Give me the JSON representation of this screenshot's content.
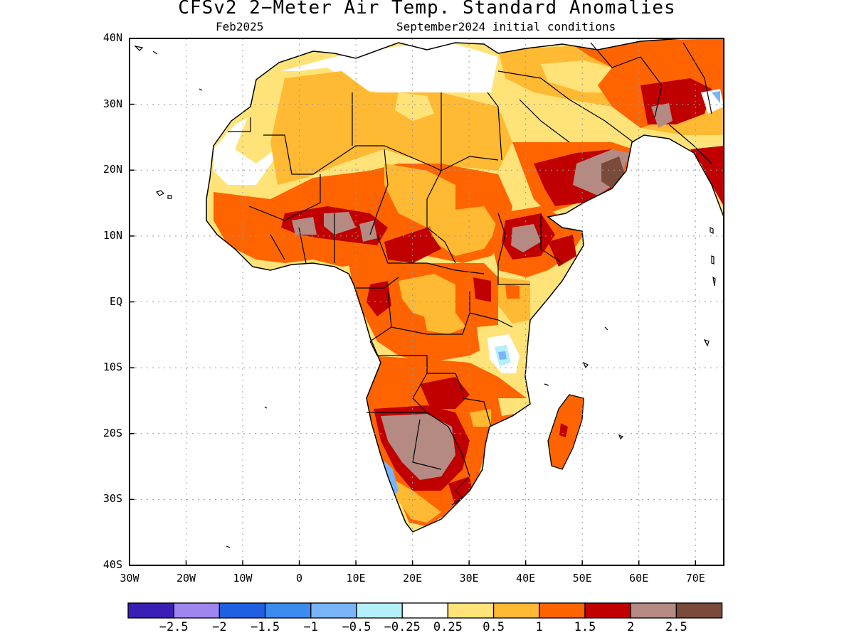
{
  "header": {
    "title": "CFSv2 2−Meter Air Temp. Standard Anomalies",
    "period": "Feb2025",
    "init": "September2024 initial conditions"
  },
  "map": {
    "region": "Africa",
    "lat_range": [
      "40S",
      "40N"
    ],
    "lon_range": [
      "30W",
      "75E"
    ],
    "lat_ticks": [
      "40N",
      "30N",
      "20N",
      "10N",
      "EQ",
      "10S",
      "20S",
      "30S",
      "40S"
    ],
    "lon_ticks": [
      "30W",
      "20W",
      "10W",
      "0",
      "10E",
      "20E",
      "30E",
      "40E",
      "50E",
      "60E",
      "70E"
    ],
    "gridlines": "dotted"
  },
  "colorbar": {
    "colors": [
      "#3b1fb4",
      "#9f85f0",
      "#1f5fe0",
      "#3c8cf0",
      "#78b4f7",
      "#b4f0fa",
      "#ffffff",
      "#ffe378",
      "#ffb932",
      "#ff6400",
      "#c00000",
      "#b48a82",
      "#7a4a3a"
    ],
    "labels": [
      "−2.5",
      "−2",
      "−1.5",
      "−1",
      "−0.5",
      "−0.25",
      "0.25",
      "0.5",
      "1",
      "1.5",
      "2",
      "2.5"
    ]
  }
}
